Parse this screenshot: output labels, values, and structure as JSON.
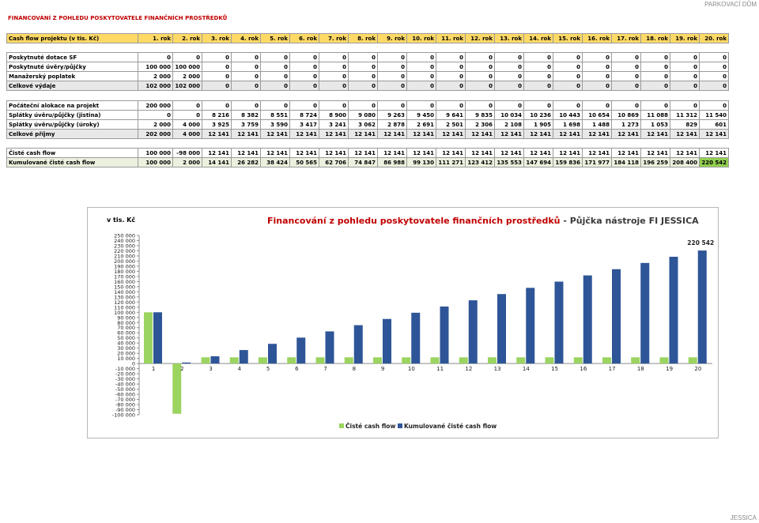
{
  "corner": {
    "top_label": "PARKOVACÍ DŮM",
    "bottom_label": "JESSICA"
  },
  "page_title": "FINANCOVÁNÍ Z POHLEDU POSKYTOVATELE FINANČNÍCH PROSTŘEDKŮ",
  "header": {
    "first": "Cash flow projektu (v tis. Kč)",
    "years": [
      "1. rok",
      "2. rok",
      "3. rok",
      "4. rok",
      "5. rok",
      "6. rok",
      "7. rok",
      "8. rok",
      "9. rok",
      "10. rok",
      "11. rok",
      "12. rok",
      "13. rok",
      "14. rok",
      "15. rok",
      "16. rok",
      "17. rok",
      "18. rok",
      "19. rok",
      "20. rok"
    ]
  },
  "costs_rows": [
    {
      "label": "Poskytnuté dotace SF",
      "values": [
        "0",
        "0",
        "0",
        "0",
        "0",
        "0",
        "0",
        "0",
        "0",
        "0",
        "0",
        "0",
        "0",
        "0",
        "0",
        "0",
        "0",
        "0",
        "0",
        "0"
      ]
    },
    {
      "label": "Poskytnuté úvěry/půjčky",
      "values": [
        "100 000",
        "100 000",
        "0",
        "0",
        "0",
        "0",
        "0",
        "0",
        "0",
        "0",
        "0",
        "0",
        "0",
        "0",
        "0",
        "0",
        "0",
        "0",
        "0",
        "0"
      ]
    },
    {
      "label": "Manažerský poplatek",
      "values": [
        "2 000",
        "2 000",
        "0",
        "0",
        "0",
        "0",
        "0",
        "0",
        "0",
        "0",
        "0",
        "0",
        "0",
        "0",
        "0",
        "0",
        "0",
        "0",
        "0",
        "0"
      ]
    },
    {
      "label": "Celkové výdaje",
      "values": [
        "102 000",
        "102 000",
        "0",
        "0",
        "0",
        "0",
        "0",
        "0",
        "0",
        "0",
        "0",
        "0",
        "0",
        "0",
        "0",
        "0",
        "0",
        "0",
        "0",
        "0"
      ]
    }
  ],
  "flow_rows": [
    {
      "label": "Počáteční alokace na projekt",
      "values": [
        "200 000",
        "0",
        "0",
        "0",
        "0",
        "0",
        "0",
        "0",
        "0",
        "0",
        "0",
        "0",
        "0",
        "0",
        "0",
        "0",
        "0",
        "0",
        "0",
        "0"
      ]
    },
    {
      "label": "Splátky úvěru/půjčky (jistina)",
      "values": [
        "0",
        "0",
        "8 216",
        "8 382",
        "8 551",
        "8 724",
        "8 900",
        "9 080",
        "9 263",
        "9 450",
        "9 641",
        "9 835",
        "10 034",
        "10 236",
        "10 443",
        "10 654",
        "10 869",
        "11 088",
        "11 312",
        "11 540"
      ]
    },
    {
      "label": "Splátky úvěru/půjčky (úroky)",
      "values": [
        "2 000",
        "4 000",
        "3 925",
        "3 759",
        "3 590",
        "3 417",
        "3 241",
        "3 062",
        "2 878",
        "2 691",
        "2 501",
        "2 306",
        "2 108",
        "1 905",
        "1 698",
        "1 488",
        "1 273",
        "1 053",
        "829",
        "601"
      ]
    },
    {
      "label": "Celkové příjmy",
      "values": [
        "202 000",
        "4 000",
        "12 141",
        "12 141",
        "12 141",
        "12 141",
        "12 141",
        "12 141",
        "12 141",
        "12 141",
        "12 141",
        "12 141",
        "12 141",
        "12 141",
        "12 141",
        "12 141",
        "12 141",
        "12 141",
        "12 141",
        "12 141"
      ]
    }
  ],
  "cash_rows": [
    {
      "label": "Čisté cash flow",
      "values": [
        "100 000",
        "-98 000",
        "12 141",
        "12 141",
        "12 141",
        "12 141",
        "12 141",
        "12 141",
        "12 141",
        "12 141",
        "12 141",
        "12 141",
        "12 141",
        "12 141",
        "12 141",
        "12 141",
        "12 141",
        "12 141",
        "12 141",
        "12 141"
      ]
    },
    {
      "label": "Kumulované čisté cash flow",
      "values": [
        "100 000",
        "2 000",
        "14 141",
        "26 282",
        "38 424",
        "50 565",
        "62 706",
        "74 847",
        "86 988",
        "99 130",
        "111 271",
        "123 412",
        "135 553",
        "147 694",
        "159 836",
        "171 977",
        "184 118",
        "196 259",
        "208 400",
        "220 542"
      ]
    }
  ],
  "colors": {
    "net_bar": "#9bd460",
    "cumulative_bar": "#2e5597",
    "title_red": "#c00000",
    "header_yellow": "#ffd966",
    "highlight_green": "#92d050"
  },
  "chart_data": {
    "type": "bar",
    "unit_label": "v tis. Kč",
    "title_red": "Financování z pohledu poskytovatele finančních prostředků",
    "title_rest": " - Půjčka nástroje FI JESSICA",
    "categories": [
      "1",
      "2",
      "3",
      "4",
      "5",
      "6",
      "7",
      "8",
      "9",
      "10",
      "11",
      "12",
      "13",
      "14",
      "15",
      "16",
      "17",
      "18",
      "19",
      "20"
    ],
    "series": [
      {
        "name": "Čisté cash flow",
        "values": [
          100000,
          -98000,
          12141,
          12141,
          12141,
          12141,
          12141,
          12141,
          12141,
          12141,
          12141,
          12141,
          12141,
          12141,
          12141,
          12141,
          12141,
          12141,
          12141,
          12141
        ]
      },
      {
        "name": "Kumulované čisté cash flow",
        "values": [
          100000,
          2000,
          14141,
          26282,
          38424,
          50565,
          62706,
          74847,
          86988,
          99130,
          111271,
          123412,
          135553,
          147694,
          159836,
          171977,
          184118,
          196259,
          208400,
          220542
        ]
      }
    ],
    "ylim": [
      -100000,
      250000
    ],
    "ytick_step": 10000,
    "ytick_labels": [
      "250 000",
      "240 000",
      "230 000",
      "220 000",
      "210 000",
      "200 000",
      "190 000",
      "180 000",
      "170 000",
      "160 000",
      "150 000",
      "140 000",
      "130 000",
      "120 000",
      "110 000",
      "100 000",
      "90 000",
      "80 000",
      "70 000",
      "60 000",
      "50 000",
      "40 000",
      "30 000",
      "20 000",
      "10 000",
      "0",
      "-10 000",
      "-20 000",
      "-30 000",
      "-40 000",
      "-50 000",
      "-60 000",
      "-70 000",
      "-80 000",
      "-90 000",
      "-100 000"
    ],
    "data_label": {
      "series": 1,
      "index": 19,
      "text": "220 542"
    },
    "legend_position": "bottom"
  }
}
